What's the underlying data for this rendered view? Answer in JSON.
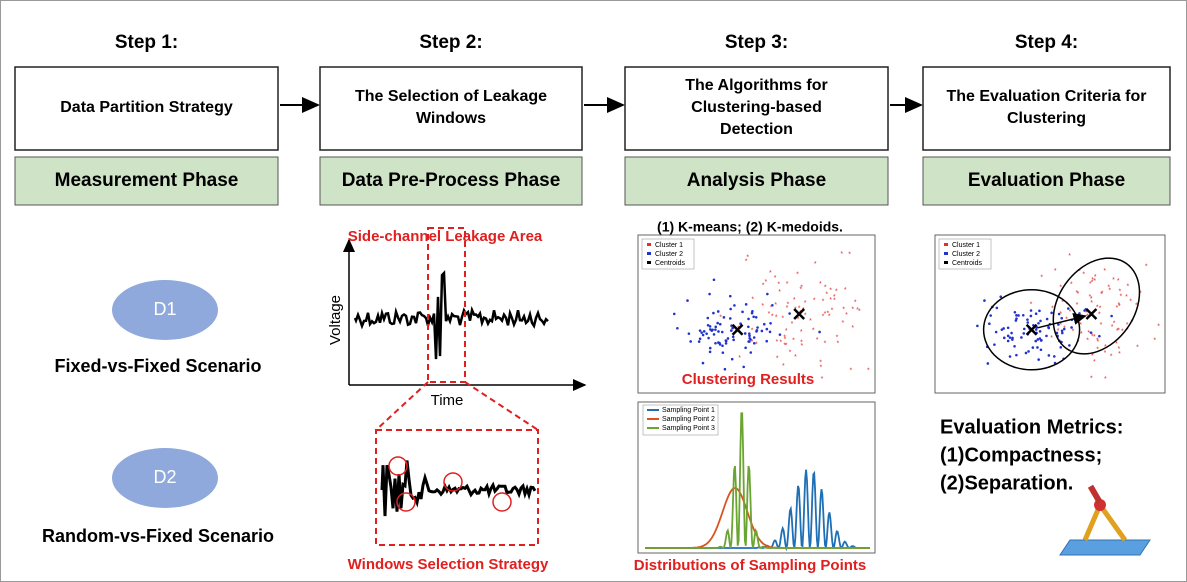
{
  "steps": [
    {
      "label": "Step 1:",
      "box": [
        "Data Partition Strategy"
      ],
      "phase": "Measurement Phase"
    },
    {
      "label": "Step 2:",
      "box": [
        "The Selection of Leakage",
        "Windows"
      ],
      "phase": "Data Pre-Process Phase"
    },
    {
      "label": "Step 3:",
      "box": [
        "The Algorithms for",
        "Clustering-based",
        "Detection"
      ],
      "phase": "Analysis Phase"
    },
    {
      "label": "Step 4:",
      "box": [
        "The Evaluation Criteria for",
        "Clustering"
      ],
      "phase": "Evaluation Phase"
    }
  ],
  "scenarios": [
    {
      "badge": "D1",
      "label": "Fixed-vs-Fixed Scenario"
    },
    {
      "badge": "D2",
      "label": "Random-vs-Fixed Scenario"
    }
  ],
  "leakage": {
    "area_label": "Side-channel Leakage Area",
    "y_axis": "Voltage",
    "x_axis": "Time",
    "window_label": "Windows Selection Strategy"
  },
  "clustering": {
    "title": "(1) K-means; (2) K-medoids.",
    "legend": [
      "Cluster 1",
      "Cluster 2",
      "Centroids"
    ],
    "caption": "Clustering Results"
  },
  "distributions": {
    "legend": [
      "Sampling Point 1",
      "Sampling Point 2",
      "Sampling Point 3"
    ],
    "caption": "Distributions of Sampling Points"
  },
  "evaluation": {
    "legend": [
      "Cluster 1",
      "Cluster 2",
      "Centroids"
    ],
    "metrics": [
      "Evaluation Metrics:",
      "(1)Compactness;",
      "(2)Separation."
    ]
  }
}
